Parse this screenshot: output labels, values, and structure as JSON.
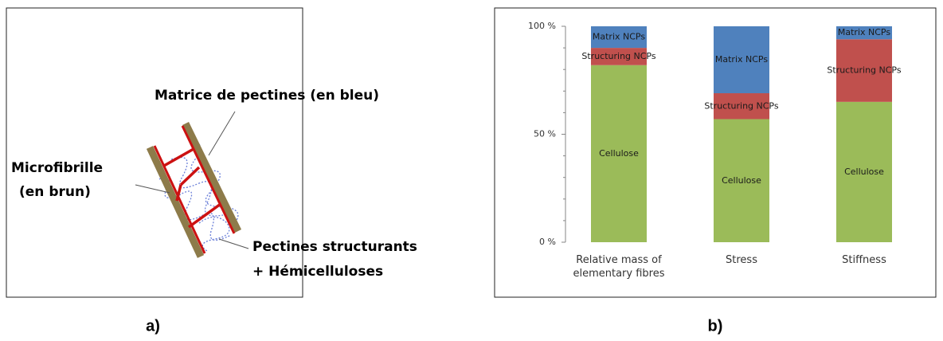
{
  "diagram": {
    "labels": [
      "Matrice de pectines (en bleu)",
      "Microfibrille",
      "(en brun)",
      "Pectines structurants",
      "+ Hémicelluloses"
    ]
  },
  "panel_labels": [
    "a)",
    "b)"
  ],
  "chart_data": {
    "type": "bar",
    "stacked": true,
    "categories": [
      "Relative mass of elementary fibres",
      "Stress",
      "Stiffness"
    ],
    "series": [
      {
        "name": "Cellulose",
        "color": "#9bbb59",
        "values": [
          82,
          57,
          65
        ]
      },
      {
        "name": "Structuring NCPs",
        "color": "#c0504d",
        "values": [
          8,
          12,
          29
        ]
      },
      {
        "name": "Matrix NCPs",
        "color": "#4f81bd",
        "values": [
          10,
          31,
          6
        ]
      }
    ],
    "ylim": [
      0,
      100
    ],
    "yticks": [
      {
        "value": 0,
        "label": "0 %"
      },
      {
        "value": 50,
        "label": "50 %"
      },
      {
        "value": 100,
        "label": "100 %"
      }
    ],
    "minor_yticks": [
      10,
      20,
      30,
      40,
      60,
      70,
      80,
      90
    ]
  }
}
